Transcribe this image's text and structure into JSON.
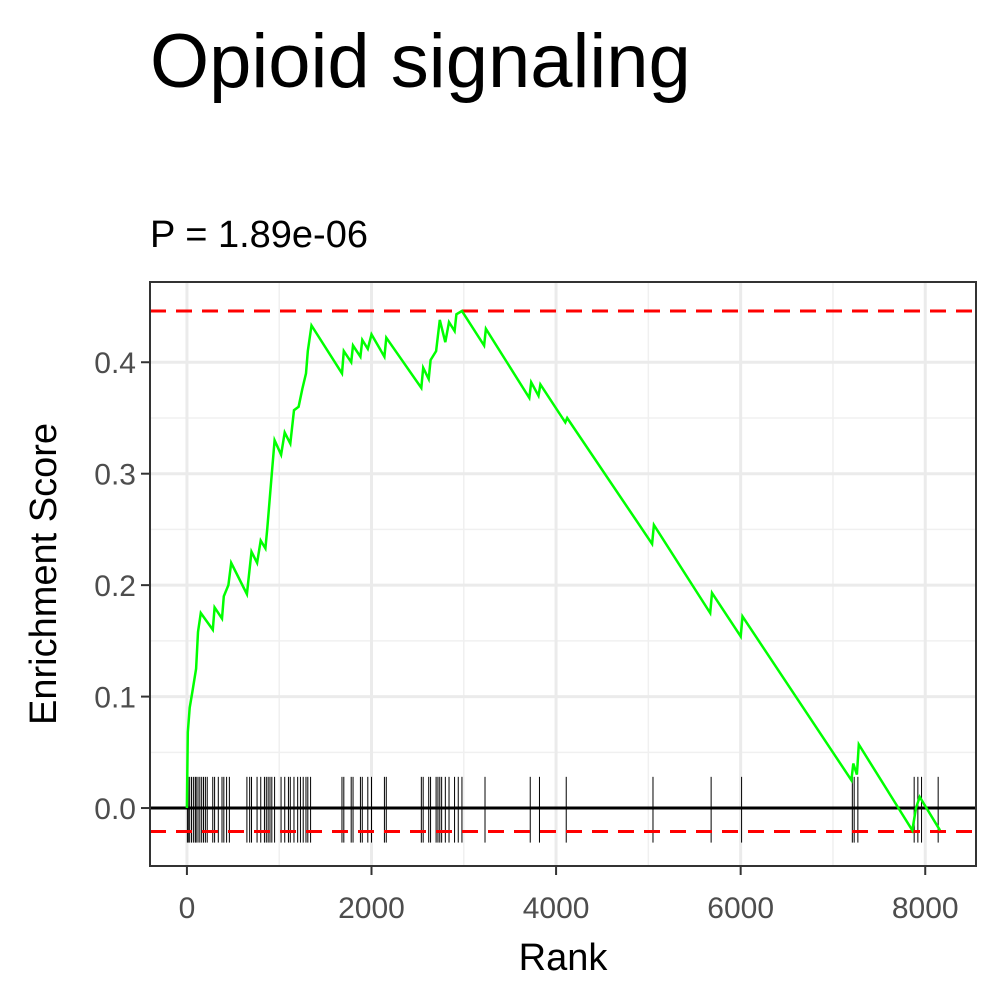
{
  "chart_data": {
    "type": "line",
    "title": "Opioid signaling",
    "subtitle": "P = 1.89e-06",
    "xlabel": "Rank",
    "ylabel": "Enrichment Score",
    "xlim": [
      -400,
      8550
    ],
    "ylim": [
      -0.052,
      0.472
    ],
    "x_ticks": [
      0,
      2000,
      4000,
      6000,
      8000
    ],
    "x_tick_labels": [
      "0",
      "2000",
      "4000",
      "6000",
      "8000"
    ],
    "y_ticks": [
      0.0,
      0.1,
      0.2,
      0.3,
      0.4
    ],
    "y_tick_labels": [
      "0.0",
      "0.1",
      "0.2",
      "0.3",
      "0.4"
    ],
    "grid": true,
    "threshold_lines": {
      "upper": 0.446,
      "lower": -0.021,
      "color": "#ff0000",
      "style": "dashed"
    },
    "series": [
      {
        "color": "#00ff00",
        "points": [
          [
            0,
            0.0
          ],
          [
            10,
            0.068
          ],
          [
            30,
            0.09
          ],
          [
            60,
            0.105
          ],
          [
            100,
            0.125
          ],
          [
            120,
            0.158
          ],
          [
            150,
            0.175
          ],
          [
            280,
            0.16
          ],
          [
            300,
            0.18
          ],
          [
            380,
            0.17
          ],
          [
            400,
            0.19
          ],
          [
            450,
            0.2
          ],
          [
            480,
            0.22
          ],
          [
            650,
            0.192
          ],
          [
            700,
            0.23
          ],
          [
            760,
            0.22
          ],
          [
            800,
            0.24
          ],
          [
            850,
            0.233
          ],
          [
            870,
            0.25
          ],
          [
            920,
            0.3
          ],
          [
            950,
            0.33
          ],
          [
            1020,
            0.317
          ],
          [
            1060,
            0.337
          ],
          [
            1120,
            0.327
          ],
          [
            1160,
            0.357
          ],
          [
            1210,
            0.36
          ],
          [
            1250,
            0.376
          ],
          [
            1290,
            0.39
          ],
          [
            1310,
            0.41
          ],
          [
            1350,
            0.433
          ],
          [
            1680,
            0.39
          ],
          [
            1700,
            0.41
          ],
          [
            1780,
            0.4
          ],
          [
            1800,
            0.415
          ],
          [
            1880,
            0.405
          ],
          [
            1900,
            0.42
          ],
          [
            1960,
            0.412
          ],
          [
            2000,
            0.425
          ],
          [
            2140,
            0.405
          ],
          [
            2160,
            0.422
          ],
          [
            2540,
            0.377
          ],
          [
            2560,
            0.395
          ],
          [
            2620,
            0.385
          ],
          [
            2640,
            0.402
          ],
          [
            2700,
            0.41
          ],
          [
            2740,
            0.438
          ],
          [
            2800,
            0.418
          ],
          [
            2840,
            0.436
          ],
          [
            2900,
            0.428
          ],
          [
            2920,
            0.443
          ],
          [
            2980,
            0.446
          ],
          [
            3220,
            0.415
          ],
          [
            3240,
            0.43
          ],
          [
            3710,
            0.368
          ],
          [
            3730,
            0.382
          ],
          [
            3810,
            0.37
          ],
          [
            3830,
            0.38
          ],
          [
            4100,
            0.346
          ],
          [
            4120,
            0.35
          ],
          [
            5040,
            0.237
          ],
          [
            5060,
            0.254
          ],
          [
            5670,
            0.175
          ],
          [
            5690,
            0.193
          ],
          [
            6000,
            0.154
          ],
          [
            6020,
            0.172
          ],
          [
            7200,
            0.025
          ],
          [
            7220,
            0.04
          ],
          [
            7260,
            0.03
          ],
          [
            7280,
            0.057
          ],
          [
            7860,
            -0.02
          ],
          [
            7900,
            0.0
          ],
          [
            7940,
            0.01
          ],
          [
            8160,
            -0.02
          ]
        ]
      }
    ],
    "rug_ticks": [
      5,
      15,
      30,
      50,
      70,
      90,
      100,
      120,
      140,
      160,
      180,
      200,
      220,
      280,
      300,
      340,
      380,
      400,
      430,
      460,
      650,
      680,
      700,
      760,
      800,
      840,
      860,
      880,
      900,
      920,
      950,
      1020,
      1060,
      1100,
      1120,
      1160,
      1200,
      1230,
      1260,
      1290,
      1310,
      1340,
      1680,
      1700,
      1780,
      1800,
      1880,
      1900,
      1960,
      2000,
      2140,
      2160,
      2540,
      2560,
      2620,
      2640,
      2700,
      2720,
      2740,
      2760,
      2800,
      2840,
      2900,
      2940,
      2980,
      3230,
      3720,
      3820,
      4110,
      5050,
      5680,
      6010,
      7210,
      7230,
      7270,
      7880,
      7920,
      7960,
      8140
    ]
  }
}
